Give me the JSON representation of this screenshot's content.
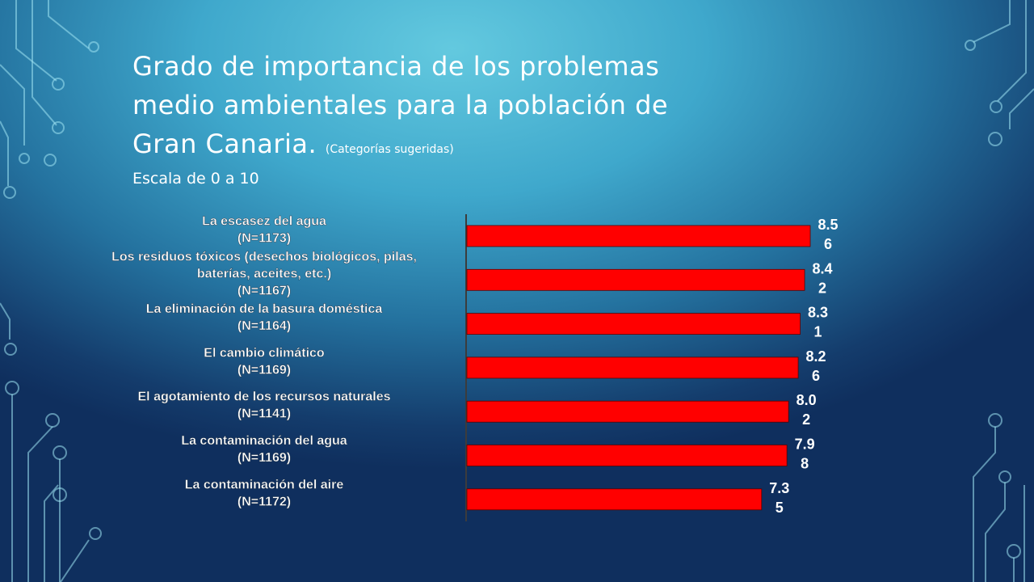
{
  "slide": {
    "title_lines": [
      "Grado de importancia de los problemas",
      "medio ambientales para la población de",
      "Gran Canaria."
    ],
    "title_note": "(Categorías sugeridas)",
    "subtitle": "Escala de 0 a 10"
  },
  "colors": {
    "bar": "#ff0000",
    "text": "#ffffff",
    "axis": "#3c3c3c"
  },
  "chart_data": {
    "type": "bar",
    "orientation": "horizontal",
    "title": "",
    "xlabel": "",
    "ylabel": "",
    "xlim": [
      0,
      10
    ],
    "categories": [
      [
        "La escasez del agua",
        "(N=1173)"
      ],
      [
        "Los residuos tóxicos (desechos biológicos, pilas,",
        "baterías, aceites, etc.)",
        "(N=1167)"
      ],
      [
        "La eliminación de la basura doméstica",
        "(N=1164)"
      ],
      [
        "El cambio climático",
        "(N=1169)"
      ],
      [
        "El agotamiento de los recursos naturales",
        "(N=1141)"
      ],
      [
        "La contaminación del agua",
        "(N=1169)"
      ],
      [
        "La contaminación del aire",
        "(N=1172)"
      ]
    ],
    "values": [
      8.56,
      8.42,
      8.31,
      8.26,
      8.02,
      7.98,
      7.35
    ],
    "data_labels": [
      [
        "8.5",
        "6"
      ],
      [
        "8.4",
        "2"
      ],
      [
        "8.3",
        "1"
      ],
      [
        "8.2",
        "6"
      ],
      [
        "8.0",
        "2"
      ],
      [
        "7.9",
        "8"
      ],
      [
        "7.3",
        "5"
      ]
    ],
    "grid": false,
    "legend": "none"
  }
}
